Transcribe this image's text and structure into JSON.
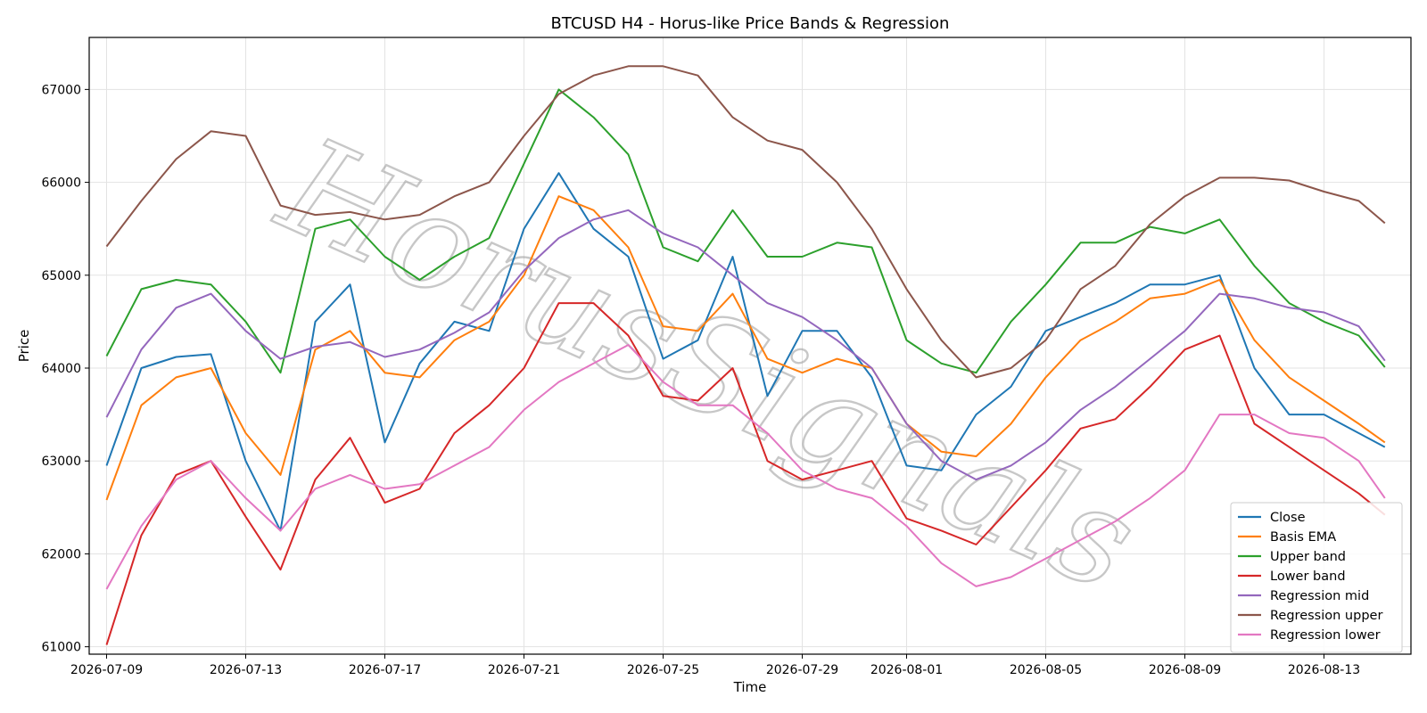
{
  "chart_data": {
    "type": "line",
    "title": "BTCUSD H4 - Horus-like Price Bands & Regression",
    "xlabel": "Time",
    "ylabel": "Price",
    "xlim": [
      "2026-07-08T12:00",
      "2026-08-15T12:00"
    ],
    "ylim": [
      60920,
      67560
    ],
    "yticks": [
      61000,
      62000,
      63000,
      64000,
      65000,
      66000,
      67000
    ],
    "xticks": [
      "2026-07-09",
      "2026-07-13",
      "2026-07-17",
      "2026-07-21",
      "2026-07-25",
      "2026-07-29",
      "2026-08-01",
      "2026-08-05",
      "2026-08-09",
      "2026-08-13"
    ],
    "grid": true,
    "legend_position": "lower-right",
    "watermark": "HorusSignals",
    "x": [
      "2026-07-09",
      "2026-07-10",
      "2026-07-11",
      "2026-07-12",
      "2026-07-13",
      "2026-07-14",
      "2026-07-15",
      "2026-07-16",
      "2026-07-17",
      "2026-07-18",
      "2026-07-19",
      "2026-07-20",
      "2026-07-21",
      "2026-07-22",
      "2026-07-23",
      "2026-07-24",
      "2026-07-25",
      "2026-07-26",
      "2026-07-27",
      "2026-07-28",
      "2026-07-29",
      "2026-07-30",
      "2026-07-31",
      "2026-08-01",
      "2026-08-02",
      "2026-08-03",
      "2026-08-04",
      "2026-08-05",
      "2026-08-06",
      "2026-08-07",
      "2026-08-08",
      "2026-08-09",
      "2026-08-10",
      "2026-08-11",
      "2026-08-12",
      "2026-08-13",
      "2026-08-14",
      "2026-08-14T18:00"
    ],
    "series": [
      {
        "name": "Close",
        "color": "#1f77b4",
        "values": [
          62950,
          64000,
          64120,
          64150,
          63000,
          62250,
          64500,
          64900,
          63200,
          64050,
          64500,
          64400,
          65500,
          66100,
          65500,
          65200,
          64100,
          64300,
          65200,
          63700,
          64400,
          64400,
          63900,
          62950,
          62900,
          63500,
          63800,
          64400,
          64550,
          64700,
          64900,
          64900,
          65000,
          64000,
          63500,
          63500,
          63300,
          63150
        ]
      },
      {
        "name": "Basis EMA",
        "color": "#ff7f0e",
        "values": [
          62580,
          63600,
          63900,
          64000,
          63300,
          62850,
          64200,
          64400,
          63950,
          63900,
          64300,
          64500,
          65000,
          65850,
          65700,
          65300,
          64450,
          64400,
          64800,
          64100,
          63950,
          64100,
          64000,
          63400,
          63100,
          63050,
          63400,
          63900,
          64300,
          64500,
          64750,
          64800,
          64950,
          64300,
          63900,
          63650,
          63400,
          63200
        ]
      },
      {
        "name": "Upper band",
        "color": "#2ca02c",
        "values": [
          64130,
          64850,
          64950,
          64900,
          64500,
          63950,
          65500,
          65600,
          65200,
          64950,
          65200,
          65400,
          66200,
          67000,
          66700,
          66300,
          65300,
          65150,
          65700,
          65200,
          65200,
          65350,
          65300,
          64300,
          64050,
          63950,
          64500,
          64900,
          65350,
          65350,
          65520,
          65450,
          65600,
          65100,
          64700,
          64500,
          64350,
          64010
        ]
      },
      {
        "name": "Lower band",
        "color": "#d62728",
        "values": [
          61020,
          62200,
          62850,
          63000,
          62400,
          61830,
          62800,
          63250,
          62550,
          62700,
          63300,
          63600,
          64000,
          64700,
          64700,
          64350,
          63700,
          63650,
          64000,
          63000,
          62800,
          62900,
          63000,
          62380,
          62250,
          62100,
          62500,
          62900,
          63350,
          63450,
          63800,
          64200,
          64350,
          63400,
          63150,
          62900,
          62650,
          62420
        ]
      },
      {
        "name": "Regression mid",
        "color": "#9467bd",
        "values": [
          63470,
          64200,
          64650,
          64800,
          64400,
          64100,
          64230,
          64280,
          64120,
          64200,
          64380,
          64600,
          65050,
          65400,
          65600,
          65700,
          65450,
          65300,
          65000,
          64700,
          64550,
          64300,
          64000,
          63400,
          63000,
          62800,
          62950,
          63200,
          63550,
          63800,
          64100,
          64400,
          64800,
          64750,
          64650,
          64600,
          64450,
          64080
        ]
      },
      {
        "name": "Regression upper",
        "color": "#8c564b",
        "values": [
          65310,
          65800,
          66250,
          66550,
          66500,
          65750,
          65650,
          65680,
          65600,
          65650,
          65850,
          66000,
          66500,
          66950,
          67150,
          67250,
          67250,
          67150,
          66700,
          66450,
          66350,
          66000,
          65500,
          64850,
          64300,
          63900,
          64000,
          64300,
          64850,
          65100,
          65550,
          65850,
          66050,
          66050,
          66020,
          65900,
          65800,
          65560
        ]
      },
      {
        "name": "Regression lower",
        "color": "#e377c2",
        "values": [
          61620,
          62300,
          62800,
          63000,
          62600,
          62250,
          62700,
          62850,
          62700,
          62750,
          62950,
          63150,
          63550,
          63850,
          64050,
          64250,
          63850,
          63600,
          63600,
          63300,
          62900,
          62700,
          62600,
          62300,
          61900,
          61650,
          61750,
          61950,
          62150,
          62350,
          62600,
          62900,
          63500,
          63500,
          63300,
          63250,
          63000,
          62600
        ]
      }
    ]
  }
}
